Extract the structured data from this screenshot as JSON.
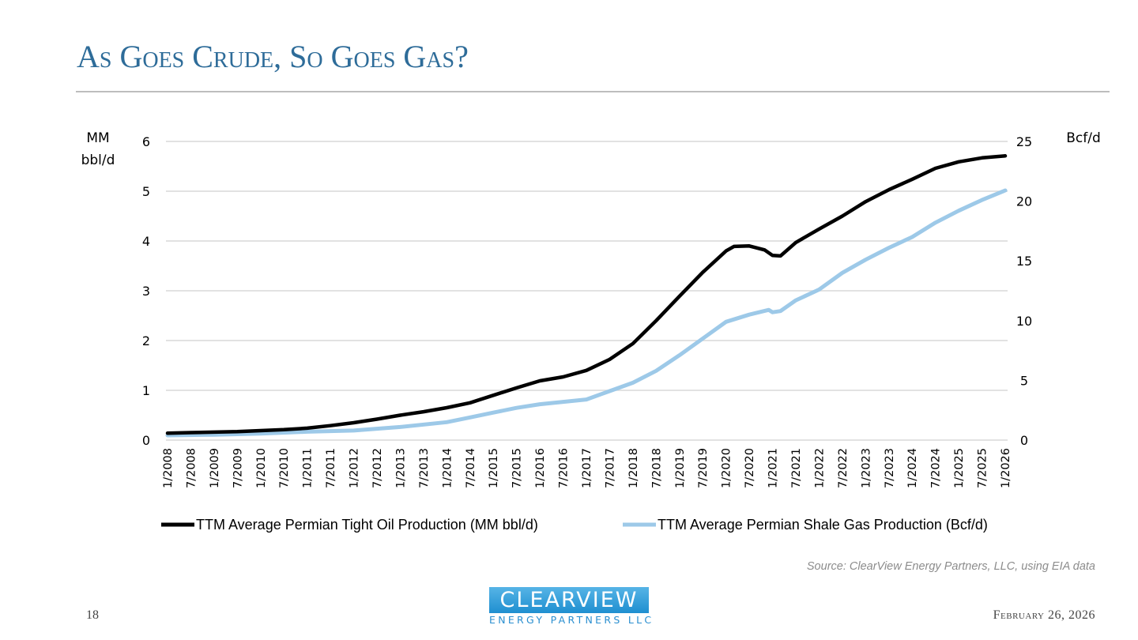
{
  "slide": {
    "title": "As Goes Crude, So Goes Gas?",
    "page_number": "18",
    "date": "February 26, 2026",
    "source": "Source: ClearView Energy Partners, LLC, using EIA data",
    "logo": {
      "top": "CLEARVIEW",
      "bottom": "ENERGY PARTNERS LLC",
      "color": "#2a8fd0"
    }
  },
  "chart_data": {
    "type": "line",
    "title": "",
    "ylabel": "MM bbl/d",
    "ylabel_lines": [
      "MM",
      "bbl/d"
    ],
    "y2label": "Bcf/d",
    "ylim": [
      0,
      6
    ],
    "y2lim": [
      0,
      25
    ],
    "yticks": [
      "0",
      "1",
      "2",
      "3",
      "4",
      "5",
      "6"
    ],
    "y2ticks": [
      "0",
      "5",
      "10",
      "15",
      "20",
      "25"
    ],
    "grid": true,
    "legend_position": "bottom",
    "x_tick_labels": [
      "1/2008",
      "7/2008",
      "1/2009",
      "7/2009",
      "1/2010",
      "7/2010",
      "1/2011",
      "7/2011",
      "1/2012",
      "7/2012",
      "1/2013",
      "7/2013",
      "1/2014",
      "7/2014",
      "1/2015",
      "7/2015",
      "1/2016",
      "7/2016",
      "1/2017",
      "7/2017",
      "1/2018",
      "7/2018",
      "1/2019",
      "7/2019",
      "1/2020",
      "7/2020",
      "1/2021",
      "7/2021",
      "1/2022",
      "7/2022",
      "1/2023",
      "7/2023",
      "1/2024",
      "7/2024",
      "1/2025",
      "7/2025",
      "1/2026"
    ],
    "x_range": [
      2008.0,
      2026.0
    ],
    "series": [
      {
        "name": "TTM Average Permian Tight Oil Production (MM bbl/d)",
        "axis": "left",
        "color": "#000000",
        "x": [
          2008.0,
          2008.5,
          2009.0,
          2009.5,
          2010.0,
          2010.5,
          2011.0,
          2011.5,
          2012.0,
          2012.5,
          2013.0,
          2013.5,
          2014.0,
          2014.5,
          2015.0,
          2015.5,
          2016.0,
          2016.5,
          2017.0,
          2017.5,
          2018.0,
          2018.5,
          2019.0,
          2019.5,
          2020.0,
          2020.17,
          2020.5,
          2020.83,
          2021.0,
          2021.17,
          2021.5,
          2022.0,
          2022.5,
          2023.0,
          2023.5,
          2024.0,
          2024.5,
          2025.0,
          2025.5,
          2026.0
        ],
        "values": [
          0.14,
          0.15,
          0.16,
          0.17,
          0.19,
          0.21,
          0.24,
          0.29,
          0.35,
          0.42,
          0.5,
          0.57,
          0.65,
          0.75,
          0.9,
          1.05,
          1.19,
          1.27,
          1.4,
          1.62,
          1.94,
          2.4,
          2.89,
          3.37,
          3.8,
          3.89,
          3.9,
          3.82,
          3.71,
          3.7,
          3.97,
          4.24,
          4.5,
          4.79,
          5.03,
          5.24,
          5.46,
          5.59,
          5.67,
          5.71
        ]
      },
      {
        "name": "TTM Average Permian Shale Gas Production (Bcf/d)",
        "axis": "right",
        "color": "#9dc9e8",
        "x": [
          2008.0,
          2009.0,
          2010.0,
          2011.0,
          2012.0,
          2013.0,
          2014.0,
          2014.5,
          2015.0,
          2015.5,
          2016.0,
          2016.5,
          2017.0,
          2017.5,
          2018.0,
          2018.5,
          2019.0,
          2019.5,
          2020.0,
          2020.5,
          2020.92,
          2021.0,
          2021.17,
          2021.5,
          2022.0,
          2022.5,
          2023.0,
          2023.5,
          2024.0,
          2024.5,
          2025.0,
          2025.5,
          2026.0
        ],
        "values": [
          0.4,
          0.45,
          0.55,
          0.7,
          0.8,
          1.1,
          1.5,
          1.9,
          2.3,
          2.7,
          3.0,
          3.2,
          3.4,
          4.1,
          4.8,
          5.8,
          7.1,
          8.5,
          9.9,
          10.5,
          10.9,
          10.7,
          10.8,
          11.7,
          12.6,
          14.0,
          15.1,
          16.1,
          17.0,
          18.2,
          19.2,
          20.1,
          20.9
        ]
      }
    ]
  }
}
